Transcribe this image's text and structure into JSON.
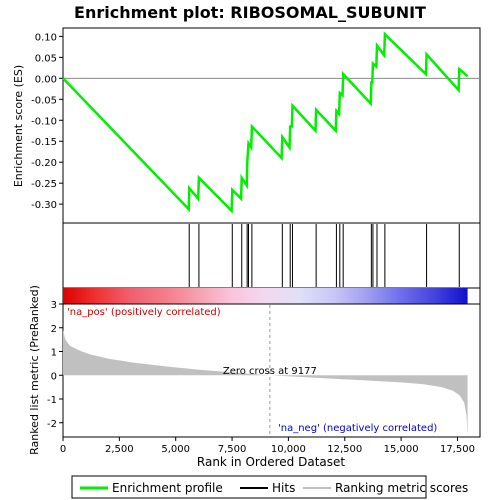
{
  "chart_data": {
    "type": "line",
    "title": "Enrichment plot: RIBOSOMAL_SUBUNIT",
    "top_panel": {
      "ylabel": "Enrichment score (ES)",
      "ylim": [
        -0.345,
        0.12
      ],
      "yticks": [
        "0.10",
        "0.05",
        "0.00",
        "-0.05",
        "-0.10",
        "-0.15",
        "-0.20",
        "-0.25",
        "-0.30"
      ],
      "ytick_values": [
        0.1,
        0.05,
        0.0,
        -0.05,
        -0.1,
        -0.15,
        -0.2,
        -0.25,
        -0.3
      ],
      "series": [
        {
          "name": "Enrichment profile",
          "color": "#00ee00",
          "x": [
            0,
            5580,
            5600,
            6000,
            6030,
            7480,
            7510,
            7900,
            7930,
            8150,
            8170,
            8200,
            8230,
            8350,
            8380,
            9700,
            9730,
            10050,
            10080,
            10150,
            10180,
            11200,
            11230,
            12100,
            12130,
            12250,
            12280,
            12400,
            12430,
            13650,
            13680,
            13720,
            13750,
            13900,
            13930,
            14250,
            14280,
            16100,
            16130,
            17550,
            17580,
            17950
          ],
          "y": [
            0.0,
            -0.312,
            -0.262,
            -0.287,
            -0.237,
            -0.316,
            -0.266,
            -0.287,
            -0.237,
            -0.255,
            -0.205,
            -0.18,
            -0.155,
            -0.165,
            -0.115,
            -0.19,
            -0.14,
            -0.165,
            -0.115,
            -0.115,
            -0.065,
            -0.125,
            -0.075,
            -0.125,
            -0.078,
            -0.085,
            -0.035,
            -0.04,
            0.01,
            -0.06,
            -0.01,
            -0.01,
            0.035,
            0.028,
            0.078,
            0.055,
            0.105,
            0.01,
            0.057,
            -0.028,
            0.022,
            0.005
          ]
        }
      ]
    },
    "hits_panel": {
      "hit_positions": [
        5600,
        6030,
        7510,
        7930,
        8170,
        8230,
        8380,
        9730,
        10080,
        10180,
        11230,
        12130,
        12280,
        12430,
        13680,
        13750,
        13930,
        14280,
        16130,
        17580
      ],
      "color_bar_stops": [
        "#dd0000",
        "#ee3333",
        "#f06070",
        "#f47b88",
        "#f6a0b0",
        "#fac4dc",
        "#f4d8f0",
        "#e0e0f8",
        "#c8c8f8",
        "#a0a0f0",
        "#6f6fee",
        "#4444dd",
        "#1111cc"
      ]
    },
    "bottom_panel": {
      "ylabel": "Ranked list metric (PreRanked)",
      "xlabel": "Rank in Ordered Dataset",
      "ylim": [
        -2.6,
        3.0
      ],
      "yticks": [
        "3",
        "2",
        "1",
        "0",
        "-1",
        "-2"
      ],
      "ytick_values": [
        3,
        2,
        1,
        0,
        -1,
        -2
      ],
      "xlim": [
        0,
        18500
      ],
      "xticks": [
        "0",
        "2,500",
        "5,000",
        "7,500",
        "10,000",
        "12,500",
        "15,000",
        "17,500"
      ],
      "xtick_values": [
        0,
        2500,
        5000,
        7500,
        10000,
        12500,
        15000,
        17500
      ],
      "metric_x": [
        0,
        100,
        300,
        700,
        1200,
        2000,
        3000,
        4500,
        6000,
        7500,
        9177,
        10500,
        12000,
        13500,
        15000,
        16000,
        16800,
        17300,
        17600,
        17800,
        17900,
        17950
      ],
      "metric_y": [
        1.9,
        1.5,
        1.25,
        1.05,
        0.88,
        0.7,
        0.55,
        0.38,
        0.24,
        0.12,
        0.0,
        -0.07,
        -0.15,
        -0.22,
        -0.3,
        -0.38,
        -0.5,
        -0.65,
        -0.85,
        -1.15,
        -1.7,
        -2.55
      ],
      "zero_cross_label": "Zero cross at 9177",
      "zero_cross_x": 9177,
      "pos_label": "'na_pos' (positively correlated)",
      "neg_label": "'na_neg' (negatively correlated)"
    },
    "legend": {
      "placement": "bottom",
      "items": [
        {
          "label": "Enrichment profile",
          "color": "#00ee00"
        },
        {
          "label": "Hits",
          "color": "#000000"
        },
        {
          "label": "Ranking metric scores",
          "color": "#c0c0c0"
        }
      ]
    }
  }
}
